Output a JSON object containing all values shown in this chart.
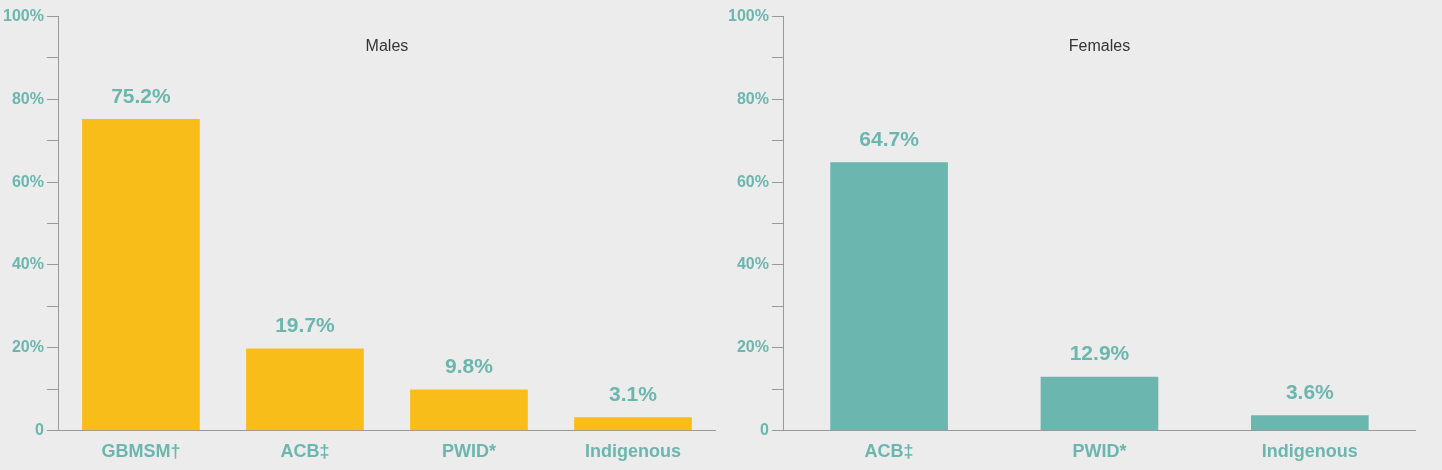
{
  "chart_data": [
    {
      "type": "bar",
      "title": "Males",
      "categories": [
        "GBMSM†",
        "ACB‡",
        "PWID*",
        "Indigenous"
      ],
      "values": [
        75.2,
        19.7,
        9.8,
        3.1
      ],
      "value_labels": [
        "75.2%",
        "19.7%",
        "9.8%",
        "3.1%"
      ],
      "color": "#f9bd19",
      "ylim": [
        0,
        100
      ],
      "yticks": [
        0,
        {
          "value": 10,
          "label": null
        },
        {
          "value": 20,
          "label": "20%"
        },
        {
          "value": 30,
          "label": null
        },
        {
          "value": 40,
          "label": "40%"
        },
        {
          "value": 50,
          "label": null
        },
        {
          "value": 60,
          "label": "60%"
        },
        {
          "value": 70,
          "label": null
        },
        {
          "value": 80,
          "label": "80%"
        },
        {
          "value": 90,
          "label": null
        },
        {
          "value": 100,
          "label": "100%"
        }
      ]
    },
    {
      "type": "bar",
      "title": "Females",
      "categories": [
        "ACB‡",
        "PWID*",
        "Indigenous"
      ],
      "values": [
        64.7,
        12.9,
        3.6
      ],
      "value_labels": [
        "64.7%",
        "12.9%",
        "3.6%"
      ],
      "color": "#6bb6ae",
      "ylim": [
        0,
        100
      ],
      "yticks": [
        0,
        {
          "value": 10,
          "label": null
        },
        {
          "value": 20,
          "label": "20%"
        },
        {
          "value": 30,
          "label": null
        },
        {
          "value": 40,
          "label": "40%"
        },
        {
          "value": 50,
          "label": null
        },
        {
          "value": 60,
          "label": "60%"
        },
        {
          "value": 70,
          "label": null
        },
        {
          "value": 80,
          "label": "80%"
        },
        {
          "value": 90,
          "label": null
        },
        {
          "value": 100,
          "label": "100%"
        }
      ]
    }
  ]
}
